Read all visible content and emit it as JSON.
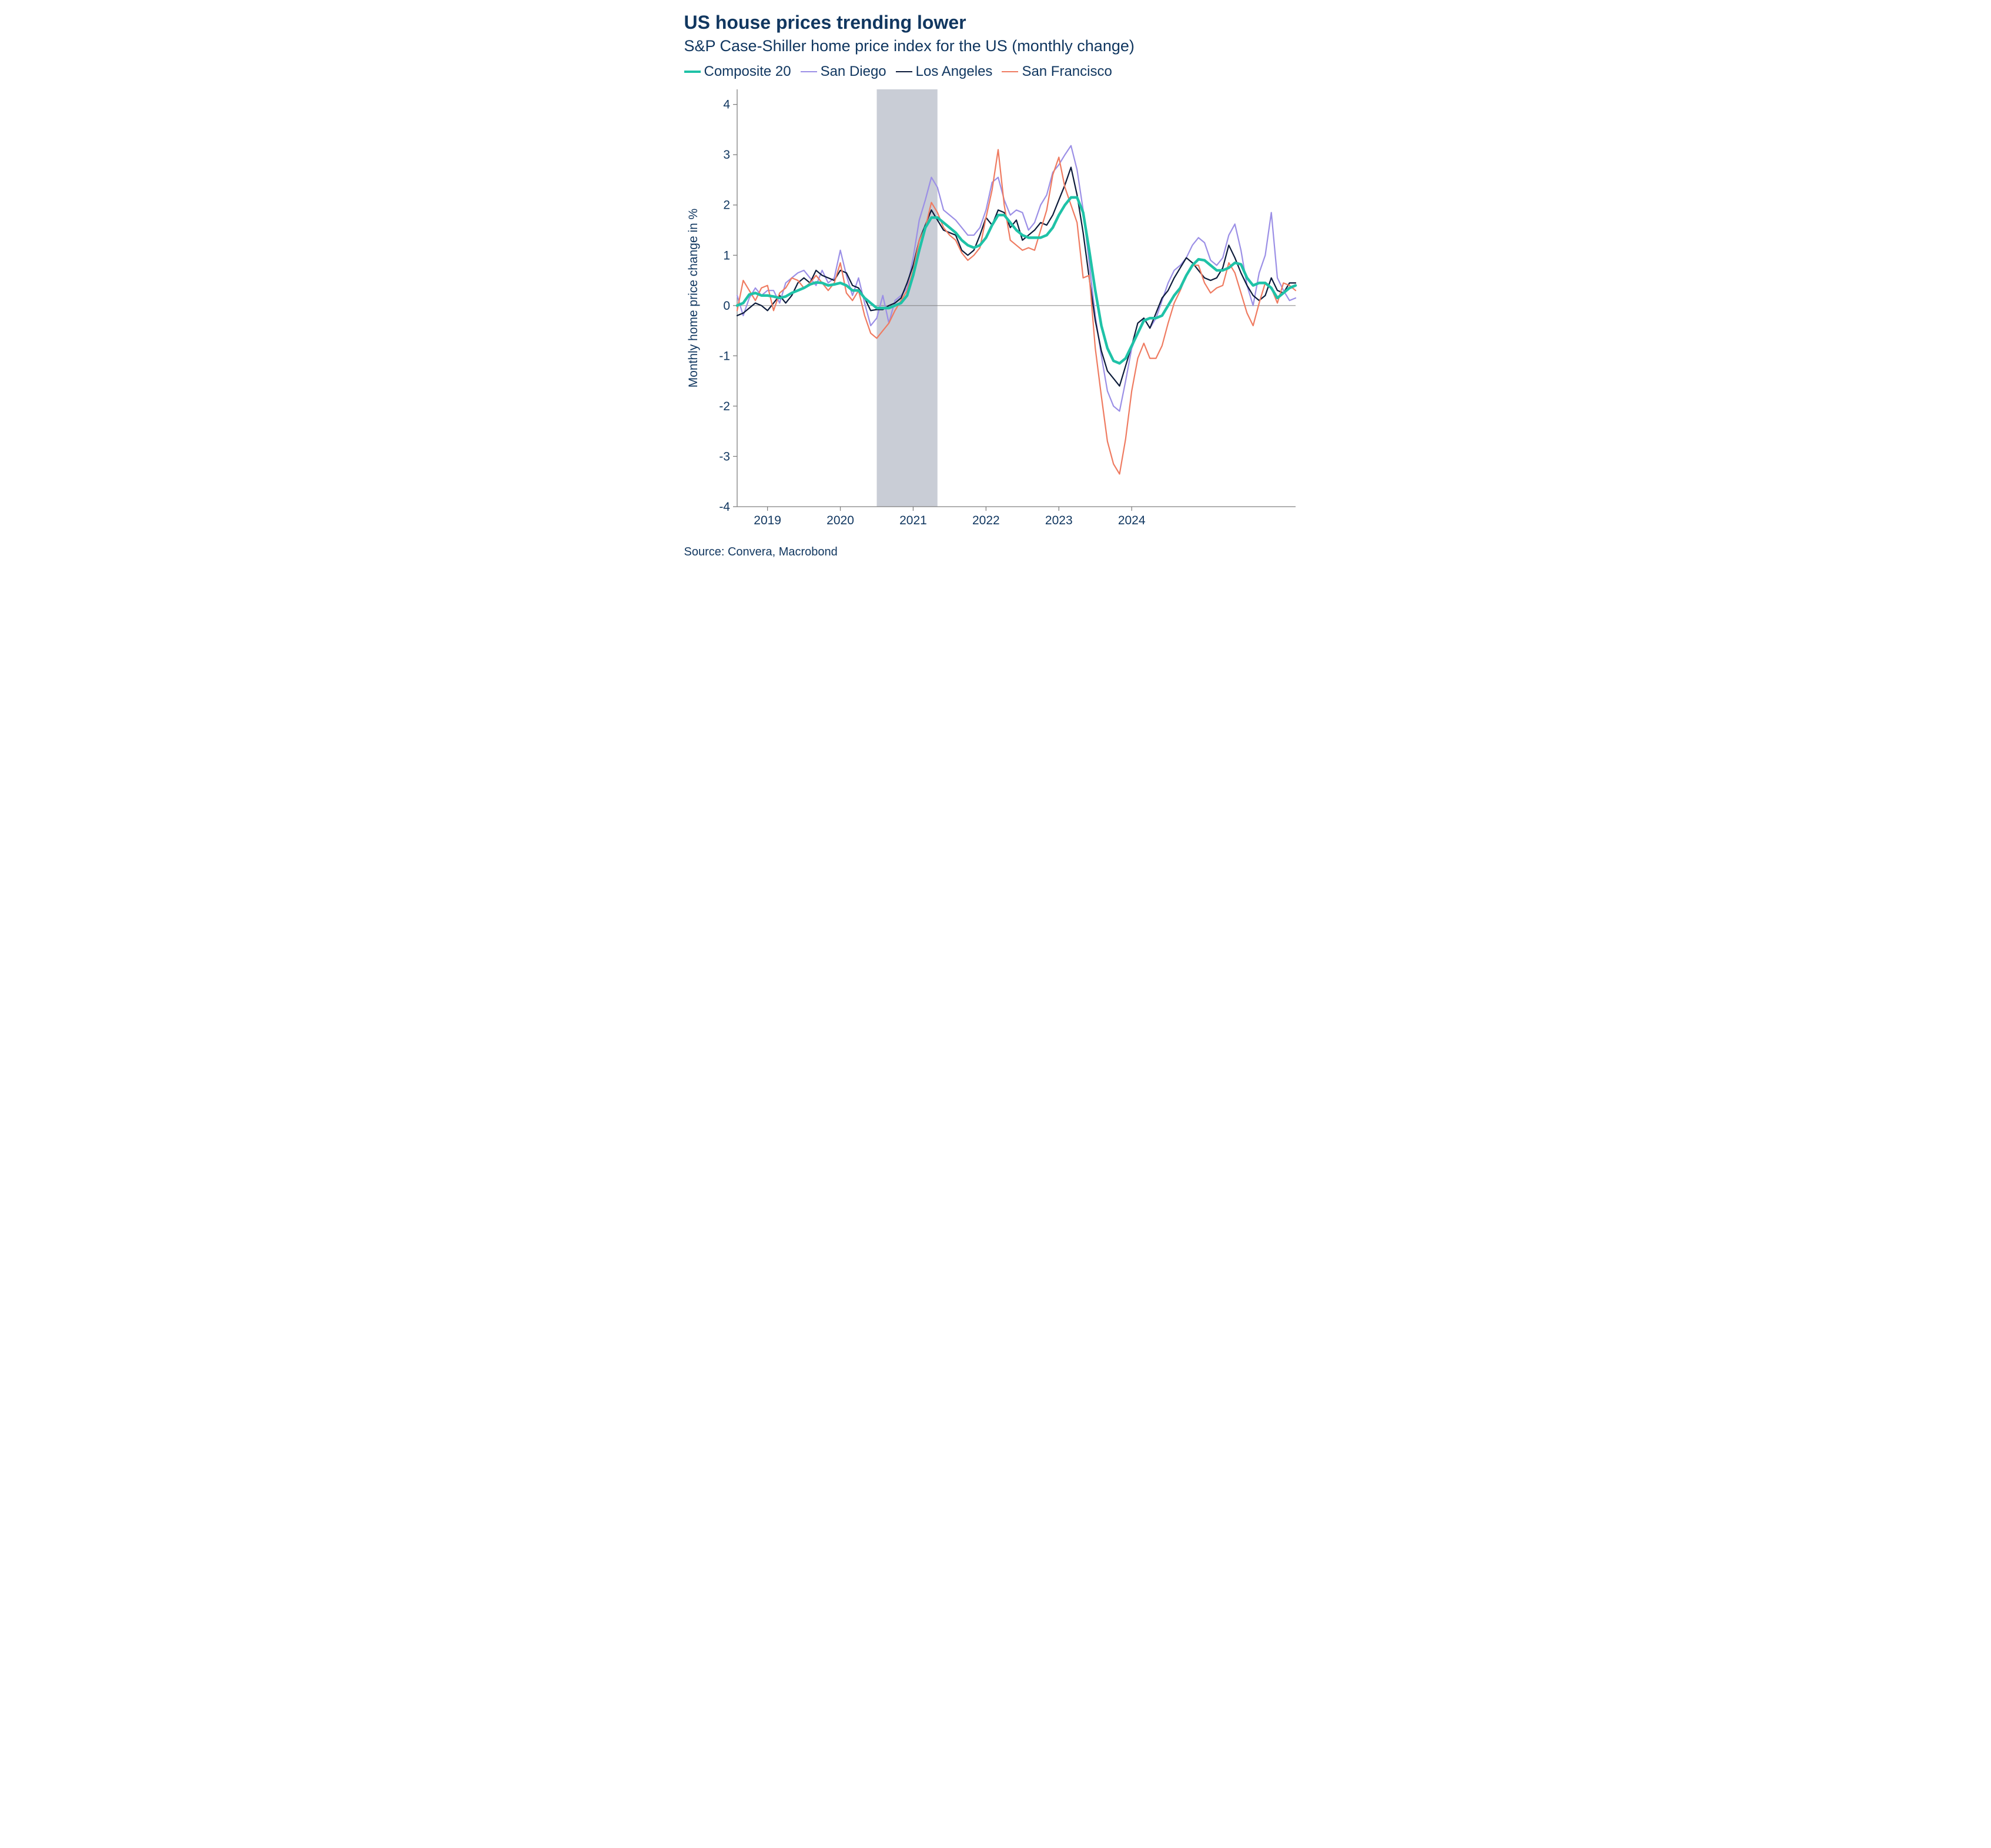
{
  "title": "US house prices trending lower",
  "subtitle": "S&P Case-Shiller home price index for the US (monthly change)",
  "source": "Source: Convera, Macrobond",
  "chart": {
    "type": "line",
    "ylabel": "Monthly home price change in %",
    "x_start_offset_months": -5,
    "ylim": [
      -4,
      4.3
    ],
    "ytick_start": -4,
    "ytick_end": 4,
    "ytick_step": 1,
    "x_years": [
      2019,
      2020,
      2021,
      2022,
      2023,
      2024
    ],
    "recession_band": {
      "start_month": 23,
      "end_month": 33
    },
    "axis_color": "#808080",
    "tick_color": "#808080",
    "label_color": "#113760",
    "axis_text_fontsize": 21,
    "ylabel_fontsize": 21,
    "recession_fill": "#c9cdd6",
    "line_width_thick": 4.5,
    "line_width_thin": 2.2,
    "series": [
      {
        "name": "Composite 20",
        "color": "#1fc2a7",
        "thick": true,
        "values": [
          0.0,
          0.05,
          0.22,
          0.25,
          0.2,
          0.2,
          0.18,
          0.15,
          0.18,
          0.25,
          0.3,
          0.35,
          0.42,
          0.46,
          0.45,
          0.4,
          0.42,
          0.45,
          0.4,
          0.3,
          0.3,
          0.15,
          0.05,
          -0.05,
          -0.05,
          -0.05,
          0.0,
          0.05,
          0.2,
          0.6,
          1.1,
          1.55,
          1.75,
          1.75,
          1.65,
          1.55,
          1.45,
          1.3,
          1.2,
          1.15,
          1.2,
          1.35,
          1.6,
          1.8,
          1.8,
          1.65,
          1.5,
          1.4,
          1.35,
          1.35,
          1.35,
          1.4,
          1.55,
          1.8,
          2.0,
          2.15,
          2.15,
          1.85,
          1.1,
          0.3,
          -0.4,
          -0.85,
          -1.1,
          -1.15,
          -1.05,
          -0.8,
          -0.55,
          -0.3,
          -0.25,
          -0.25,
          -0.2,
          0.0,
          0.2,
          0.35,
          0.6,
          0.8,
          0.92,
          0.9,
          0.8,
          0.7,
          0.7,
          0.75,
          0.85,
          0.82,
          0.55,
          0.4,
          0.45,
          0.45,
          0.35,
          0.15,
          0.25,
          0.35,
          0.4
        ]
      },
      {
        "name": "San Diego",
        "color": "#9b8fe6",
        "thick": false,
        "values": [
          0.2,
          -0.2,
          0.15,
          0.35,
          0.2,
          0.3,
          0.3,
          0.05,
          0.45,
          0.55,
          0.65,
          0.7,
          0.55,
          0.4,
          0.7,
          0.45,
          0.55,
          1.1,
          0.6,
          0.2,
          0.55,
          0.05,
          -0.4,
          -0.25,
          0.2,
          -0.35,
          0.1,
          0.2,
          0.35,
          0.95,
          1.7,
          2.1,
          2.55,
          2.35,
          1.9,
          1.8,
          1.7,
          1.55,
          1.4,
          1.4,
          1.55,
          1.9,
          2.45,
          2.55,
          2.1,
          1.8,
          1.9,
          1.85,
          1.5,
          1.65,
          2.0,
          2.2,
          2.65,
          2.8,
          3.0,
          3.18,
          2.7,
          1.9,
          0.85,
          -0.2,
          -1.0,
          -1.7,
          -2.0,
          -2.1,
          -1.5,
          -0.85,
          -0.55,
          -0.25,
          -0.45,
          -0.25,
          0.1,
          0.45,
          0.7,
          0.8,
          0.95,
          1.2,
          1.35,
          1.25,
          0.9,
          0.8,
          0.95,
          1.4,
          1.62,
          1.1,
          0.4,
          0.0,
          0.65,
          1.0,
          1.85,
          0.55,
          0.3,
          0.1,
          0.15
        ]
      },
      {
        "name": "Los Angeles",
        "color": "#0c1b3a",
        "thick": false,
        "values": [
          -0.2,
          -0.15,
          -0.05,
          0.05,
          0.0,
          -0.1,
          0.05,
          0.2,
          0.05,
          0.2,
          0.45,
          0.55,
          0.45,
          0.7,
          0.6,
          0.55,
          0.5,
          0.7,
          0.65,
          0.4,
          0.35,
          0.15,
          -0.1,
          -0.08,
          -0.08,
          0.0,
          0.05,
          0.15,
          0.45,
          0.8,
          1.3,
          1.6,
          1.9,
          1.7,
          1.5,
          1.45,
          1.4,
          1.1,
          1.0,
          1.1,
          1.4,
          1.75,
          1.6,
          1.9,
          1.85,
          1.55,
          1.7,
          1.3,
          1.4,
          1.5,
          1.65,
          1.6,
          1.8,
          2.1,
          2.4,
          2.75,
          2.2,
          1.45,
          0.55,
          -0.3,
          -0.9,
          -1.3,
          -1.45,
          -1.6,
          -1.2,
          -0.8,
          -0.35,
          -0.25,
          -0.45,
          -0.15,
          0.15,
          0.3,
          0.55,
          0.75,
          0.95,
          0.85,
          0.7,
          0.55,
          0.5,
          0.55,
          0.75,
          1.2,
          0.95,
          0.65,
          0.4,
          0.2,
          0.1,
          0.2,
          0.55,
          0.3,
          0.25,
          0.45,
          0.45
        ]
      },
      {
        "name": "San Francisco",
        "color": "#ef7b61",
        "thick": false,
        "values": [
          -0.1,
          0.5,
          0.3,
          0.1,
          0.35,
          0.4,
          -0.1,
          0.25,
          0.35,
          0.55,
          0.5,
          0.35,
          0.45,
          0.6,
          0.45,
          0.3,
          0.45,
          0.85,
          0.25,
          0.1,
          0.3,
          -0.2,
          -0.55,
          -0.65,
          -0.5,
          -0.35,
          -0.1,
          0.1,
          0.3,
          0.7,
          1.3,
          1.55,
          2.05,
          1.85,
          1.55,
          1.4,
          1.3,
          1.05,
          0.9,
          1.0,
          1.15,
          1.75,
          2.3,
          3.1,
          2.0,
          1.3,
          1.2,
          1.1,
          1.15,
          1.1,
          1.5,
          1.9,
          2.6,
          2.95,
          2.35,
          2.0,
          1.65,
          0.55,
          0.6,
          -0.85,
          -1.8,
          -2.7,
          -3.15,
          -3.35,
          -2.65,
          -1.7,
          -1.05,
          -0.75,
          -1.05,
          -1.05,
          -0.8,
          -0.35,
          0.05,
          0.3,
          0.6,
          0.8,
          0.8,
          0.45,
          0.25,
          0.35,
          0.4,
          0.85,
          0.65,
          0.25,
          -0.15,
          -0.4,
          0.05,
          0.45,
          0.35,
          0.05,
          0.45,
          0.4,
          0.3
        ]
      }
    ]
  }
}
